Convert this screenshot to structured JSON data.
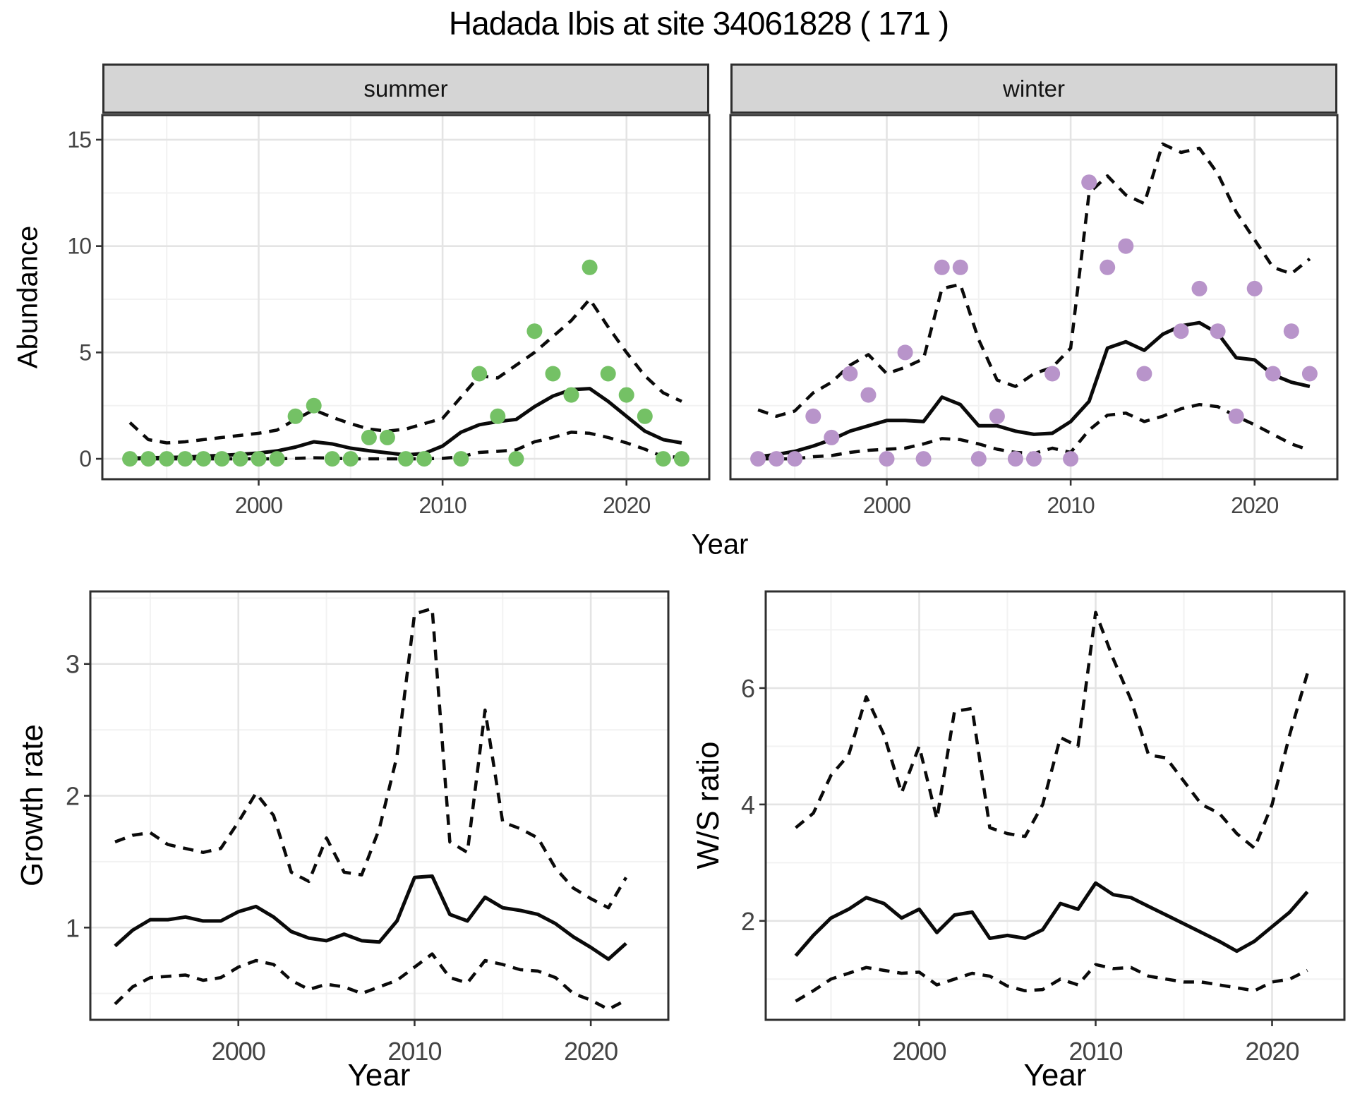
{
  "title": "Hadada Ibis at site 34061828 ( 171 )",
  "colors": {
    "summer_points": "#74c165",
    "winter_points": "#b894ca",
    "line": "#0a0a0a",
    "strip_bg": "#d5d5d5",
    "panel_border": "#2f2f2f",
    "grid_major": "#e4e4e4",
    "grid_minor": "#f2f2f2",
    "tick_text": "#444444"
  },
  "chart_data": [
    {
      "id": "abundance",
      "type": "line+scatter",
      "title": "Hadada Ibis at site 34061828 ( 171 )",
      "xlabel": "Year",
      "ylabel": "Abundance",
      "legend": "none",
      "grid": "on",
      "xlim": [
        1991.5,
        2024.5
      ],
      "ylim": [
        -0.96,
        16.16
      ],
      "xticks_major": [
        2000,
        2010,
        2020
      ],
      "xticks_minor": [
        1995,
        2005,
        2015
      ],
      "yticks_major": [
        0,
        5,
        10,
        15
      ],
      "yticks_minor": [
        2.5,
        7.5,
        12.5
      ],
      "years": [
        1993,
        1994,
        1995,
        1996,
        1997,
        1998,
        1999,
        2000,
        2001,
        2002,
        2003,
        2004,
        2005,
        2006,
        2007,
        2008,
        2009,
        2010,
        2011,
        2012,
        2013,
        2014,
        2015,
        2016,
        2017,
        2018,
        2019,
        2020,
        2021,
        2022,
        2023
      ],
      "facets": [
        {
          "name": "summer",
          "point_color": "#74c165",
          "fit": [
            0.03,
            0.05,
            0.06,
            0.08,
            0.12,
            0.16,
            0.21,
            0.27,
            0.37,
            0.55,
            0.8,
            0.7,
            0.5,
            0.38,
            0.28,
            0.18,
            0.25,
            0.6,
            1.25,
            1.6,
            1.75,
            1.85,
            2.45,
            2.95,
            3.25,
            3.3,
            2.7,
            2.0,
            1.3,
            0.9,
            0.75
          ],
          "upper": [
            1.7,
            0.9,
            0.75,
            0.8,
            0.9,
            1.0,
            1.1,
            1.2,
            1.35,
            1.85,
            2.3,
            1.95,
            1.65,
            1.4,
            1.3,
            1.4,
            1.65,
            1.9,
            2.9,
            3.9,
            3.8,
            4.4,
            5.0,
            5.75,
            6.5,
            7.5,
            6.2,
            5.0,
            3.9,
            3.1,
            2.7
          ],
          "lower": [
            0.0,
            0.0,
            0.0,
            0.0,
            0.0,
            0.0,
            0.0,
            0.0,
            0.0,
            0.02,
            0.05,
            0.03,
            0.0,
            0.0,
            0.0,
            0.0,
            0.0,
            0.02,
            0.1,
            0.3,
            0.35,
            0.42,
            0.8,
            1.0,
            1.25,
            1.2,
            1.0,
            0.75,
            0.45,
            0.1,
            0.08
          ],
          "obs_years": [
            1993,
            1994,
            1995,
            1996,
            1997,
            1998,
            1999,
            2000,
            2001,
            2002,
            2003,
            2004,
            2005,
            2006,
            2007,
            2008,
            2009,
            2011,
            2012,
            2013,
            2014,
            2015,
            2016,
            2017,
            2018,
            2019,
            2020,
            2021,
            2022,
            2023
          ],
          "obs_values": [
            0,
            0,
            0,
            0,
            0,
            0,
            0,
            0,
            0,
            2,
            2.5,
            0,
            0,
            1,
            1,
            0,
            0,
            0,
            4,
            2,
            0,
            6,
            4,
            3,
            9,
            4,
            3,
            2,
            0,
            0
          ]
        },
        {
          "name": "winter",
          "point_color": "#b894ca",
          "fit": [
            0.1,
            0.2,
            0.35,
            0.6,
            0.9,
            1.3,
            1.55,
            1.8,
            1.8,
            1.75,
            2.9,
            2.55,
            1.55,
            1.55,
            1.3,
            1.15,
            1.2,
            1.75,
            2.7,
            5.2,
            5.5,
            5.1,
            5.85,
            6.25,
            6.4,
            5.9,
            4.75,
            4.65,
            3.95,
            3.6,
            3.4
          ],
          "upper": [
            2.3,
            2.0,
            2.25,
            3.1,
            3.6,
            4.4,
            4.9,
            4.0,
            4.3,
            4.7,
            8.0,
            8.2,
            5.6,
            3.7,
            3.4,
            4.0,
            4.3,
            5.2,
            12.5,
            13.3,
            12.4,
            12.0,
            14.8,
            14.4,
            14.6,
            13.4,
            11.6,
            10.3,
            9.0,
            8.7,
            9.4
          ],
          "lower": [
            0.0,
            0.0,
            0.0,
            0.1,
            0.15,
            0.3,
            0.4,
            0.45,
            0.5,
            0.7,
            0.95,
            0.9,
            0.7,
            0.45,
            0.3,
            0.25,
            0.5,
            0.3,
            1.35,
            2.05,
            2.15,
            1.75,
            2.0,
            2.35,
            2.55,
            2.45,
            2.0,
            1.6,
            1.15,
            0.7,
            0.4
          ],
          "obs_years": [
            1993,
            1994,
            1995,
            1996,
            1997,
            1998,
            1999,
            2000,
            2001,
            2002,
            2003,
            2004,
            2005,
            2006,
            2007,
            2008,
            2009,
            2010,
            2011,
            2012,
            2013,
            2014,
            2016,
            2017,
            2018,
            2019,
            2020,
            2021,
            2022,
            2023
          ],
          "obs_values": [
            0,
            0,
            0,
            2,
            1,
            4,
            3,
            0,
            5,
            0,
            9,
            9,
            0,
            2,
            0,
            0,
            4,
            0,
            13,
            9,
            10,
            4,
            6,
            8,
            6,
            2,
            8,
            4,
            6,
            4
          ]
        }
      ]
    },
    {
      "id": "growth_rate",
      "type": "line",
      "xlabel": "Year",
      "ylabel": "Growth rate",
      "legend": "none",
      "grid": "on",
      "xlim": [
        1991.6,
        2024.4
      ],
      "ylim": [
        0.3,
        3.55
      ],
      "xticks_major": [
        2000,
        2010,
        2020
      ],
      "xticks_minor": [
        1995,
        2005,
        2015
      ],
      "yticks_major": [
        1,
        2,
        3
      ],
      "yticks_minor": [
        0.5,
        1.5,
        2.5,
        3.5
      ],
      "years": [
        1993,
        1994,
        1995,
        1996,
        1997,
        1998,
        1999,
        2000,
        2001,
        2002,
        2003,
        2004,
        2005,
        2006,
        2007,
        2008,
        2009,
        2010,
        2011,
        2012,
        2013,
        2014,
        2015,
        2016,
        2017,
        2018,
        2019,
        2020,
        2021,
        2022
      ],
      "fit": [
        0.86,
        0.98,
        1.06,
        1.06,
        1.08,
        1.05,
        1.05,
        1.12,
        1.16,
        1.08,
        0.97,
        0.92,
        0.9,
        0.95,
        0.9,
        0.89,
        1.05,
        1.38,
        1.39,
        1.1,
        1.05,
        1.23,
        1.15,
        1.13,
        1.1,
        1.03,
        0.93,
        0.85,
        0.76,
        0.88
      ],
      "upper": [
        1.65,
        1.7,
        1.72,
        1.63,
        1.6,
        1.57,
        1.6,
        1.8,
        2.02,
        1.85,
        1.42,
        1.35,
        1.68,
        1.42,
        1.4,
        1.75,
        2.3,
        3.38,
        3.42,
        1.65,
        1.57,
        2.65,
        1.8,
        1.75,
        1.68,
        1.45,
        1.3,
        1.22,
        1.15,
        1.38
      ],
      "lower": [
        0.42,
        0.55,
        0.62,
        0.63,
        0.64,
        0.6,
        0.62,
        0.7,
        0.75,
        0.72,
        0.6,
        0.53,
        0.57,
        0.55,
        0.5,
        0.55,
        0.6,
        0.7,
        0.8,
        0.62,
        0.58,
        0.75,
        0.72,
        0.68,
        0.67,
        0.62,
        0.5,
        0.45,
        0.38,
        0.45
      ]
    },
    {
      "id": "ws_ratio",
      "type": "line",
      "xlabel": "Year",
      "ylabel": "W/S ratio",
      "legend": "none",
      "grid": "on",
      "xlim": [
        1991.3,
        2024.1
      ],
      "ylim": [
        0.3,
        7.66
      ],
      "xticks_major": [
        2000,
        2010,
        2020
      ],
      "xticks_minor": [
        1995,
        2005,
        2015
      ],
      "yticks_major": [
        2,
        4,
        6
      ],
      "yticks_minor": [
        1,
        3,
        5,
        7
      ],
      "years": [
        1993,
        1994,
        1995,
        1996,
        1997,
        1998,
        1999,
        2000,
        2001,
        2002,
        2003,
        2004,
        2005,
        2006,
        2007,
        2008,
        2009,
        2010,
        2011,
        2012,
        2013,
        2014,
        2015,
        2016,
        2017,
        2018,
        2019,
        2020,
        2021,
        2022
      ],
      "fit": [
        1.4,
        1.75,
        2.05,
        2.2,
        2.4,
        2.3,
        2.05,
        2.2,
        1.8,
        2.1,
        2.15,
        1.7,
        1.75,
        1.7,
        1.85,
        2.3,
        2.2,
        2.65,
        2.45,
        2.4,
        2.25,
        2.1,
        1.95,
        1.8,
        1.65,
        1.48,
        1.65,
        1.9,
        2.15,
        2.5
      ],
      "upper": [
        3.6,
        3.85,
        4.5,
        4.85,
        5.85,
        5.2,
        4.2,
        5.0,
        3.75,
        5.6,
        5.65,
        3.6,
        3.5,
        3.45,
        4.0,
        5.15,
        5.0,
        7.3,
        6.5,
        5.8,
        4.85,
        4.8,
        4.4,
        4.0,
        3.85,
        3.5,
        3.25,
        4.0,
        5.2,
        6.25
      ],
      "lower": [
        0.62,
        0.8,
        1.0,
        1.1,
        1.2,
        1.15,
        1.1,
        1.12,
        0.9,
        1.0,
        1.1,
        1.05,
        0.88,
        0.8,
        0.82,
        1.0,
        0.9,
        1.25,
        1.18,
        1.2,
        1.05,
        1.0,
        0.95,
        0.95,
        0.9,
        0.85,
        0.8,
        0.95,
        1.0,
        1.15
      ]
    }
  ]
}
